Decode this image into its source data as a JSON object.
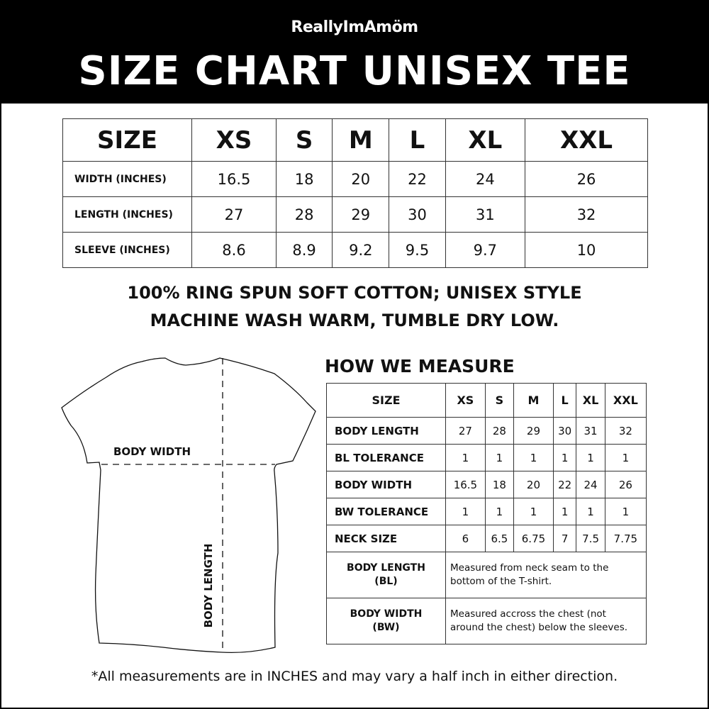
{
  "brand": "ReallyImAmöm",
  "title": "SIZE CHART UNISEX TEE",
  "size_table": {
    "header": [
      "SIZE",
      "XS",
      "S",
      "M",
      "L",
      "XL",
      "XXL"
    ],
    "rows": [
      {
        "label": "WIDTH (INCHES)",
        "values": [
          "16.5",
          "18",
          "20",
          "22",
          "24",
          "26"
        ]
      },
      {
        "label": "LENGTH (INCHES)",
        "values": [
          "27",
          "28",
          "29",
          "30",
          "31",
          "32"
        ]
      },
      {
        "label": "SLEEVE (INCHES)",
        "values": [
          "8.6",
          "8.9",
          "9.2",
          "9.5",
          "9.7",
          "10"
        ]
      }
    ]
  },
  "notes": [
    "100% RING SPUN SOFT COTTON; UNISEX STYLE",
    "MACHINE WASH WARM, TUMBLE DRY LOW."
  ],
  "diagram": {
    "body_width": "BODY WIDTH",
    "body_length": "BODY LENGTH"
  },
  "measure": {
    "title": "HOW WE MEASURE",
    "header": [
      "SIZE",
      "XS",
      "S",
      "M",
      "L",
      "XL",
      "XXL"
    ],
    "rows": [
      {
        "label": "BODY LENGTH",
        "values": [
          "27",
          "28",
          "29",
          "30",
          "31",
          "32"
        ]
      },
      {
        "label": "BL TOLERANCE",
        "values": [
          "1",
          "1",
          "1",
          "1",
          "1",
          "1"
        ]
      },
      {
        "label": "BODY WIDTH",
        "values": [
          "16.5",
          "18",
          "20",
          "22",
          "24",
          "26"
        ]
      },
      {
        "label": "BW TOLERANCE",
        "values": [
          "1",
          "1",
          "1",
          "1",
          "1",
          "1"
        ]
      },
      {
        "label": "NECK SIZE",
        "values": [
          "6",
          "6.5",
          "6.75",
          "7",
          "7.5",
          "7.75"
        ]
      }
    ],
    "definitions": [
      {
        "term": "BODY LENGTH",
        "abbr": "(BL)",
        "line1": "Measured from neck seam to the",
        "line2": "bottom of the T-shirt."
      },
      {
        "term": "BODY WIDTH",
        "abbr": "(BW)",
        "line1": "Measured accross the chest (not",
        "line2": "around the chest) below the sleeves."
      }
    ]
  },
  "footnote": "*All measurements are in INCHES and may vary a half inch in either direction."
}
